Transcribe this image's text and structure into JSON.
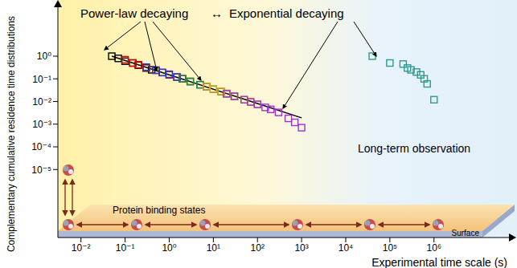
{
  "chart_data": {
    "type": "scatter",
    "x_label": "Experimental time scale (s)",
    "y_label": "Complementary cumulative residence time distributions",
    "log": true,
    "grid": false,
    "xlim": [
      0.003,
      50000000
    ],
    "ylim": [
      1e-08,
      200
    ],
    "xticks": [
      {
        "value": 0.01,
        "label": "10⁻²"
      },
      {
        "value": 0.1,
        "label": "10⁻¹"
      },
      {
        "value": 1,
        "label": "10⁰"
      },
      {
        "value": 10,
        "label": "10¹"
      },
      {
        "value": 100,
        "label": "10²"
      },
      {
        "value": 1000,
        "label": "10³"
      },
      {
        "value": 10000,
        "label": "10⁴"
      },
      {
        "value": 100000,
        "label": "10⁵"
      },
      {
        "value": 1000000,
        "label": "10⁶"
      }
    ],
    "yticks": [
      {
        "value": 1,
        "label": "10⁰"
      },
      {
        "value": 0.1,
        "label": "10⁻¹"
      },
      {
        "value": 0.01,
        "label": "10⁻²"
      },
      {
        "value": 0.001,
        "label": "10⁻³"
      },
      {
        "value": 0.0001,
        "label": "10⁻⁴"
      },
      {
        "value": 1e-05,
        "label": "10⁻⁵"
      }
    ],
    "annotations": [
      "Power-law decaying",
      "↔",
      "Exponential decaying",
      "Long-term observation",
      "Protein binding states",
      "Surface"
    ],
    "series": [
      {
        "color": "#000000",
        "marker": "square",
        "x": [
          0.05,
          0.07,
          0.1,
          0.15,
          0.2,
          0.3,
          0.4
        ],
        "values": [
          1.0,
          0.8,
          0.6,
          0.5,
          0.4,
          0.3,
          0.25
        ]
      },
      {
        "color": "#e00000",
        "marker": "square",
        "x": [
          0.1,
          0.15,
          0.2,
          0.3,
          0.5,
          0.7,
          1,
          1.5,
          2
        ],
        "values": [
          0.7,
          0.5,
          0.42,
          0.32,
          0.24,
          0.19,
          0.15,
          0.12,
          0.1
        ]
      },
      {
        "color": "#1f3fd0",
        "marker": "square",
        "x": [
          0.3,
          0.5,
          0.7,
          1,
          1.5,
          2,
          3,
          5,
          7
        ],
        "values": [
          0.33,
          0.24,
          0.19,
          0.16,
          0.12,
          0.1,
          0.075,
          0.055,
          0.045
        ]
      },
      {
        "color": "#2e8b2e",
        "marker": "square",
        "x": [
          2,
          3,
          5,
          7,
          10,
          15,
          20,
          30
        ],
        "values": [
          0.1,
          0.078,
          0.055,
          0.045,
          0.035,
          0.027,
          0.022,
          0.017
        ]
      },
      {
        "color": "#f0a020",
        "marker": "square",
        "x": [
          7,
          10,
          15,
          20,
          30,
          50,
          70,
          100
        ],
        "values": [
          0.045,
          0.036,
          0.028,
          0.023,
          0.017,
          0.012,
          0.01,
          0.0075
        ]
      },
      {
        "color": "#a030d0",
        "marker": "square",
        "x": [
          20,
          30,
          50,
          70,
          100,
          150,
          200,
          300,
          500,
          700,
          1000
        ],
        "values": [
          0.022,
          0.017,
          0.012,
          0.0095,
          0.0075,
          0.0055,
          0.0045,
          0.0033,
          0.0018,
          0.0012,
          0.0007
        ]
      },
      {
        "type": "line",
        "color": "#000000",
        "line_style": "solid",
        "x": [
          0.05,
          1,
          100,
          1000
        ],
        "values": [
          1.0,
          0.15,
          0.0082,
          0.0019
        ]
      },
      {
        "color": "#2a9d8f",
        "marker": "square",
        "x": [
          40000,
          100000,
          200000,
          250000,
          300000,
          400000,
          500000,
          600000,
          700000,
          1000000
        ],
        "values": [
          1,
          0.5,
          0.45,
          0.3,
          0.25,
          0.2,
          0.15,
          0.1,
          0.06,
          0.012
        ]
      }
    ]
  }
}
